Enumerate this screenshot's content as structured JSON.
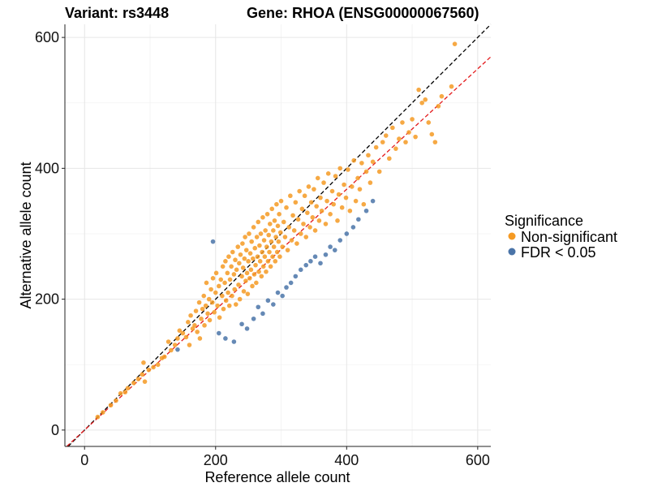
{
  "chart_data": {
    "type": "scatter",
    "title_left": "Variant: rs3448",
    "title_right": "Gene: RHOA (ENSG00000067560)",
    "xlabel": "Reference allele count",
    "ylabel": "Alternative allele count",
    "xlim": [
      -30,
      620
    ],
    "ylim": [
      -25,
      620
    ],
    "x_ticks": [
      0,
      200,
      400,
      600
    ],
    "y_ticks": [
      0,
      200,
      400,
      600
    ],
    "x_tick_labels": [
      "0",
      "200",
      "400",
      "600"
    ],
    "y_tick_labels": [
      "0",
      "200",
      "400",
      "600"
    ],
    "grid": true,
    "legend_position": "right",
    "legend_title": "Significance",
    "reference_lines": [
      {
        "kind": "identity",
        "slope": 1,
        "intercept": 0,
        "color": "#000000",
        "dash": "dashed"
      },
      {
        "kind": "fit",
        "slope": 0.92,
        "intercept": 0,
        "color": "#e31a1c",
        "dash": "dashed"
      }
    ],
    "series": [
      {
        "name": "Non-significant",
        "color": "#f59a23",
        "points": [
          [
            20,
            20
          ],
          [
            28,
            27
          ],
          [
            40,
            38
          ],
          [
            48,
            45
          ],
          [
            55,
            56
          ],
          [
            62,
            58
          ],
          [
            66,
            64
          ],
          [
            75,
            72
          ],
          [
            82,
            78
          ],
          [
            88,
            85
          ],
          [
            90,
            103
          ],
          [
            92,
            74
          ],
          [
            98,
            92
          ],
          [
            105,
            96
          ],
          [
            112,
            100
          ],
          [
            118,
            110
          ],
          [
            122,
            112
          ],
          [
            128,
            135
          ],
          [
            132,
            122
          ],
          [
            138,
            130
          ],
          [
            142,
            140
          ],
          [
            145,
            152
          ],
          [
            150,
            148
          ],
          [
            155,
            142
          ],
          [
            158,
            165
          ],
          [
            160,
            130
          ],
          [
            162,
            175
          ],
          [
            165,
            155
          ],
          [
            168,
            160
          ],
          [
            170,
            182
          ],
          [
            172,
            150
          ],
          [
            175,
            195
          ],
          [
            176,
            140
          ],
          [
            178,
            170
          ],
          [
            180,
            185
          ],
          [
            182,
            205
          ],
          [
            183,
            160
          ],
          [
            185,
            190
          ],
          [
            186,
            225
          ],
          [
            188,
            178
          ],
          [
            190,
            200
          ],
          [
            191,
            168
          ],
          [
            193,
            215
          ],
          [
            195,
            195
          ],
          [
            196,
            232
          ],
          [
            198,
            180
          ],
          [
            200,
            210
          ],
          [
            201,
            240
          ],
          [
            203,
            190
          ],
          [
            205,
            220
          ],
          [
            206,
            172
          ],
          [
            208,
            230
          ],
          [
            210,
            205
          ],
          [
            211,
            250
          ],
          [
            212,
            185
          ],
          [
            214,
            225
          ],
          [
            215,
            258
          ],
          [
            216,
            198
          ],
          [
            218,
            240
          ],
          [
            219,
            210
          ],
          [
            220,
            265
          ],
          [
            221,
            190
          ],
          [
            222,
            230
          ],
          [
            224,
            250
          ],
          [
            225,
            205
          ],
          [
            226,
            272
          ],
          [
            228,
            238
          ],
          [
            229,
            215
          ],
          [
            230,
            260
          ],
          [
            231,
            192
          ],
          [
            232,
            245
          ],
          [
            234,
            280
          ],
          [
            235,
            222
          ],
          [
            236,
            255
          ],
          [
            237,
            200
          ],
          [
            238,
            268
          ],
          [
            240,
            235
          ],
          [
            241,
            285
          ],
          [
            242,
            248
          ],
          [
            243,
            212
          ],
          [
            244,
            262
          ],
          [
            245,
            295
          ],
          [
            246,
            228
          ],
          [
            247,
            275
          ],
          [
            248,
            240
          ],
          [
            249,
            208
          ],
          [
            250,
            258
          ],
          [
            251,
            300
          ],
          [
            252,
            232
          ],
          [
            253,
            270
          ],
          [
            254,
            245
          ],
          [
            255,
            288
          ],
          [
            256,
            220
          ],
          [
            257,
            262
          ],
          [
            258,
            310
          ],
          [
            259,
            238
          ],
          [
            260,
            278
          ],
          [
            261,
            252
          ],
          [
            262,
            225
          ],
          [
            263,
            295
          ],
          [
            264,
            265
          ],
          [
            265,
            318
          ],
          [
            266,
            242
          ],
          [
            267,
            282
          ],
          [
            268,
            258
          ],
          [
            269,
            300
          ],
          [
            270,
            235
          ],
          [
            271,
            272
          ],
          [
            272,
            325
          ],
          [
            273,
            250
          ],
          [
            274,
            290
          ],
          [
            275,
            265
          ],
          [
            276,
            305
          ],
          [
            277,
            242
          ],
          [
            278,
            280
          ],
          [
            279,
            330
          ],
          [
            280,
            258
          ],
          [
            281,
            298
          ],
          [
            282,
            272
          ],
          [
            283,
            315
          ],
          [
            284,
            250
          ],
          [
            285,
            288
          ],
          [
            286,
            338
          ],
          [
            287,
            265
          ],
          [
            288,
            305
          ],
          [
            289,
            280
          ],
          [
            290,
            320
          ],
          [
            291,
            258
          ],
          [
            292,
            295
          ],
          [
            293,
            345
          ],
          [
            294,
            272
          ],
          [
            295,
            312
          ],
          [
            296,
            288
          ],
          [
            297,
            330
          ],
          [
            298,
            265
          ],
          [
            299,
            302
          ],
          [
            300,
            350
          ],
          [
            302,
            280
          ],
          [
            304,
            318
          ],
          [
            306,
            295
          ],
          [
            308,
            340
          ],
          [
            310,
            275
          ],
          [
            312,
            310
          ],
          [
            314,
            358
          ],
          [
            316,
            290
          ],
          [
            318,
            328
          ],
          [
            320,
            305
          ],
          [
            322,
            348
          ],
          [
            324,
            285
          ],
          [
            326,
            322
          ],
          [
            328,
            365
          ],
          [
            330,
            300
          ],
          [
            332,
            338
          ],
          [
            334,
            315
          ],
          [
            336,
            358
          ],
          [
            338,
            295
          ],
          [
            340,
            332
          ],
          [
            342,
            372
          ],
          [
            344,
            310
          ],
          [
            346,
            348
          ],
          [
            348,
            325
          ],
          [
            350,
            368
          ],
          [
            352,
            305
          ],
          [
            354,
            342
          ],
          [
            356,
            385
          ],
          [
            358,
            320
          ],
          [
            360,
            355
          ],
          [
            362,
            335
          ],
          [
            365,
            378
          ],
          [
            368,
            315
          ],
          [
            370,
            350
          ],
          [
            372,
            392
          ],
          [
            375,
            330
          ],
          [
            378,
            365
          ],
          [
            380,
            345
          ],
          [
            383,
            388
          ],
          [
            386,
            320
          ],
          [
            388,
            360
          ],
          [
            390,
            400
          ],
          [
            393,
            340
          ],
          [
            396,
            375
          ],
          [
            399,
            355
          ],
          [
            402,
            398
          ],
          [
            405,
            335
          ],
          [
            408,
            372
          ],
          [
            411,
            412
          ],
          [
            414,
            350
          ],
          [
            417,
            385
          ],
          [
            420,
            368
          ],
          [
            423,
            408
          ],
          [
            426,
            345
          ],
          [
            430,
            395
          ],
          [
            433,
            420
          ],
          [
            436,
            378
          ],
          [
            440,
            410
          ],
          [
            445,
            432
          ],
          [
            450,
            395
          ],
          [
            455,
            440
          ],
          [
            460,
            450
          ],
          [
            465,
            415
          ],
          [
            470,
            462
          ],
          [
            475,
            430
          ],
          [
            480,
            445
          ],
          [
            485,
            470
          ],
          [
            490,
            440
          ],
          [
            495,
            455
          ],
          [
            500,
            475
          ],
          [
            505,
            448
          ],
          [
            510,
            520
          ],
          [
            515,
            500
          ],
          [
            520,
            505
          ],
          [
            525,
            470
          ],
          [
            530,
            452
          ],
          [
            535,
            440
          ],
          [
            540,
            495
          ],
          [
            545,
            510
          ],
          [
            560,
            525
          ],
          [
            565,
            590
          ]
        ]
      },
      {
        "name": "FDR < 0.05",
        "color": "#4a74a8",
        "points": [
          [
            142,
            123
          ],
          [
            196,
            288
          ],
          [
            205,
            148
          ],
          [
            215,
            140
          ],
          [
            228,
            135
          ],
          [
            240,
            162
          ],
          [
            248,
            155
          ],
          [
            258,
            170
          ],
          [
            265,
            188
          ],
          [
            272,
            178
          ],
          [
            280,
            198
          ],
          [
            288,
            192
          ],
          [
            295,
            210
          ],
          [
            302,
            205
          ],
          [
            308,
            218
          ],
          [
            315,
            225
          ],
          [
            322,
            235
          ],
          [
            330,
            245
          ],
          [
            338,
            252
          ],
          [
            345,
            258
          ],
          [
            352,
            265
          ],
          [
            360,
            255
          ],
          [
            368,
            268
          ],
          [
            375,
            280
          ],
          [
            382,
            275
          ],
          [
            390,
            290
          ],
          [
            400,
            300
          ],
          [
            410,
            310
          ],
          [
            418,
            322
          ],
          [
            430,
            335
          ],
          [
            440,
            350
          ]
        ]
      }
    ]
  }
}
